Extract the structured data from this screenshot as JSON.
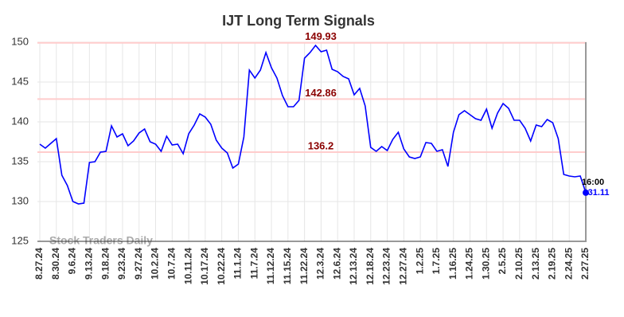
{
  "chart_data": {
    "type": "line",
    "title": "IJT Long Term Signals",
    "categories": [
      "8.27.24",
      null,
      null,
      "8.30.24",
      null,
      null,
      "9.6.24",
      null,
      null,
      "9.13.24",
      null,
      null,
      "9.18.24",
      null,
      null,
      "9.23.24",
      null,
      null,
      "9.27.24",
      null,
      null,
      "10.2.24",
      null,
      null,
      "10.7.24",
      null,
      null,
      "10.11.24",
      null,
      null,
      "10.17.24",
      null,
      null,
      "10.22.24",
      null,
      null,
      "11.1.24",
      null,
      null,
      "11.7.24",
      null,
      null,
      "11.12.24",
      null,
      null,
      "11.15.24",
      null,
      null,
      "11.22.24",
      null,
      null,
      "12.3.24",
      null,
      null,
      "12.6.24",
      null,
      null,
      "12.13.24",
      null,
      null,
      "12.18.24",
      null,
      null,
      "12.23.24",
      null,
      null,
      "12.27.24",
      null,
      null,
      "1.2.25",
      null,
      null,
      "1.7.25",
      null,
      null,
      "1.16.25",
      null,
      null,
      "1.24.25",
      null,
      null,
      "1.30.25",
      null,
      null,
      "2.5.25",
      null,
      null,
      "2.10.25",
      null,
      null,
      "2.13.25",
      null,
      null,
      "2.19.25",
      null,
      null,
      "2.24.25",
      null,
      null,
      "2.27.25"
    ],
    "values": [
      137.2,
      136.7,
      137.3,
      137.9,
      133.3,
      132.0,
      130.0,
      129.7,
      129.8,
      134.9,
      135.0,
      136.2,
      136.3,
      139.5,
      138.1,
      138.5,
      137.0,
      137.6,
      138.6,
      139.1,
      137.5,
      137.2,
      136.3,
      138.2,
      137.1,
      137.2,
      136.0,
      138.5,
      139.6,
      141.0,
      140.6,
      139.7,
      137.7,
      136.7,
      136.1,
      134.2,
      134.7,
      138.1,
      146.5,
      145.5,
      146.5,
      148.7,
      146.8,
      145.5,
      143.3,
      141.9,
      141.9,
      142.7,
      148.0,
      148.7,
      149.6,
      148.8,
      149.0,
      146.6,
      146.3,
      145.7,
      145.4,
      143.4,
      144.2,
      142.0,
      136.8,
      136.3,
      136.9,
      136.4,
      137.8,
      138.7,
      136.6,
      135.6,
      135.4,
      135.6,
      137.4,
      137.3,
      136.3,
      136.5,
      134.4,
      138.7,
      140.9,
      141.4,
      140.9,
      140.4,
      140.2,
      141.6,
      139.2,
      141.1,
      142.3,
      141.7,
      140.2,
      140.2,
      139.2,
      137.6,
      139.6,
      139.4,
      140.3,
      139.9,
      137.9,
      133.4,
      133.2,
      133.1,
      133.2,
      131.11
    ],
    "color": "#0000ff",
    "ylim": [
      125,
      150
    ],
    "yticks": [
      125,
      130,
      135,
      140,
      145,
      150
    ],
    "grid": true,
    "hlines": [
      149.93,
      142.86,
      136.2
    ],
    "hline_color": "#ffcccc",
    "hline_label_color": "#8b0000",
    "last_time": "16:00",
    "watermark": "Stock Traders Daily"
  }
}
